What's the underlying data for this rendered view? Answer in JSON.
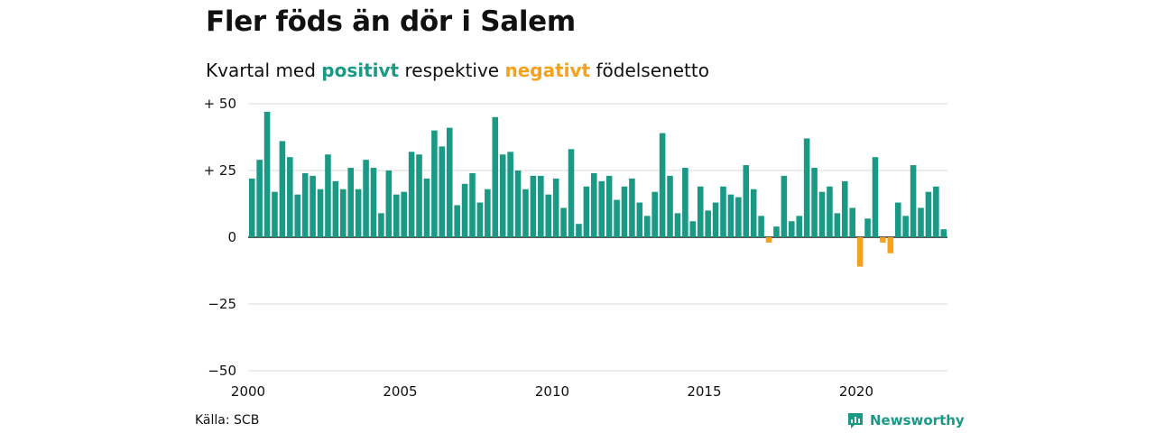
{
  "title": "Fler föds än dör i Salem",
  "subtitle": {
    "prefix": "Kvartal med ",
    "positive": "positivt",
    "middle": " respektive ",
    "negative": "negativt",
    "suffix": " födelsenetto"
  },
  "source": "Källa: SCB",
  "brand": "Newsworthy",
  "colors": {
    "positive": "#1a9985",
    "negative": "#f5a11c"
  },
  "chart_data": {
    "type": "bar",
    "ylim": [
      -50,
      50
    ],
    "yticks": [
      50,
      25,
      0,
      -25,
      -50
    ],
    "ytick_labels": [
      "+ 50",
      "+ 25",
      "0",
      "−25",
      "−50"
    ],
    "xticks": [
      2000,
      2005,
      2010,
      2015,
      2020
    ],
    "x_start": 2000,
    "x_end": 2023,
    "grid": true,
    "values": [
      22,
      29,
      47,
      17,
      36,
      30,
      16,
      24,
      23,
      18,
      31,
      21,
      18,
      26,
      18,
      29,
      26,
      9,
      25,
      16,
      17,
      32,
      31,
      22,
      40,
      34,
      41,
      12,
      20,
      24,
      13,
      18,
      45,
      31,
      32,
      25,
      18,
      23,
      23,
      16,
      22,
      11,
      33,
      5,
      19,
      24,
      21,
      23,
      14,
      19,
      22,
      13,
      8,
      17,
      39,
      23,
      9,
      26,
      6,
      19,
      10,
      13,
      19,
      16,
      15,
      27,
      18,
      8,
      -2,
      4,
      23,
      6,
      8,
      37,
      26,
      17,
      19,
      9,
      21,
      11,
      -11,
      7,
      30,
      -2,
      -6,
      13,
      8,
      27,
      11,
      17,
      19,
      3
    ]
  }
}
